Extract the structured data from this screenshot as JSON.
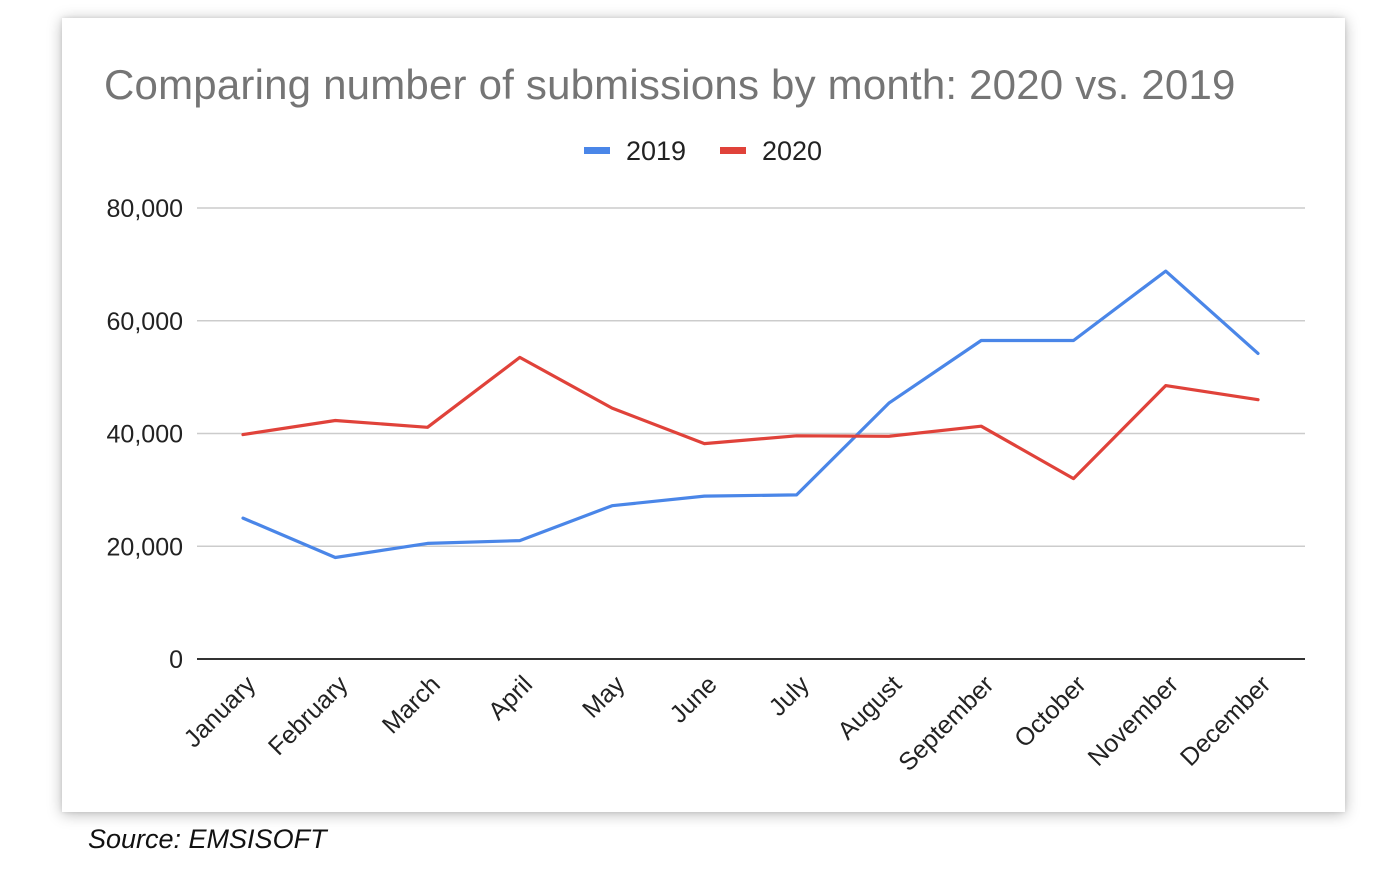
{
  "chart_data": {
    "type": "line",
    "title": "Comparing number of submissions by month: 2020 vs. 2019",
    "xlabel": "",
    "ylabel": "",
    "categories": [
      "January",
      "February",
      "March",
      "April",
      "May",
      "June",
      "July",
      "August",
      "September",
      "October",
      "November",
      "December"
    ],
    "series": [
      {
        "name": "2019",
        "color": "#4a86e8",
        "values": [
          25000,
          18000,
          20500,
          21000,
          27200,
          28900,
          29100,
          45400,
          56500,
          56500,
          68800,
          54200
        ]
      },
      {
        "name": "2020",
        "color": "#e0423a",
        "values": [
          39800,
          42300,
          41100,
          53500,
          44500,
          38200,
          39600,
          39500,
          41300,
          32000,
          48500,
          46000
        ]
      }
    ],
    "ylim": [
      0,
      80000
    ],
    "yticks": [
      0,
      20000,
      40000,
      60000,
      80000
    ],
    "ytick_labels": [
      "0",
      "20,000",
      "40,000",
      "60,000",
      "80,000"
    ],
    "grid": true,
    "legend_position": "top-center"
  },
  "source": "Source: EMSISOFT"
}
